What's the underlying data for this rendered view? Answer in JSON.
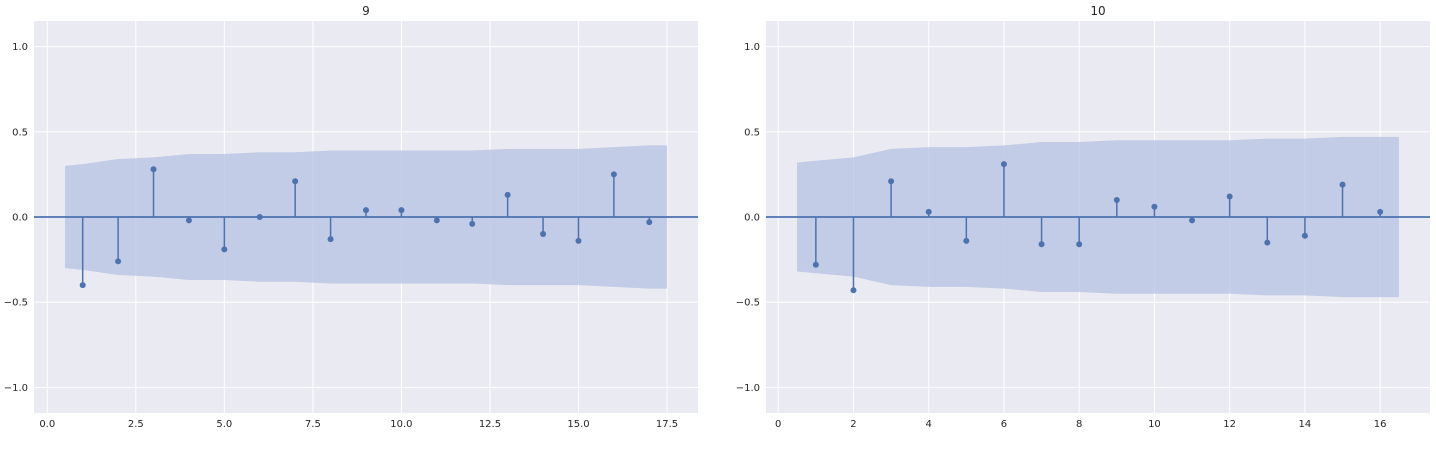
{
  "colors": {
    "series": "#4c72b0",
    "confidence_band": "#b4c1e1",
    "background": "#eaeaf2",
    "grid": "#ffffff"
  },
  "chart_data": [
    {
      "type": "stem",
      "title": "9",
      "xlim": [
        -0.375,
        18.375
      ],
      "ylim": [
        -1.15,
        1.15
      ],
      "xticks": [
        0.0,
        2.5,
        5.0,
        7.5,
        10.0,
        12.5,
        15.0,
        17.5
      ],
      "xtick_labels": [
        "0.0",
        "2.5",
        "5.0",
        "7.5",
        "10.0",
        "12.5",
        "15.0",
        "17.5"
      ],
      "yticks": [
        -1.0,
        -0.5,
        0.0,
        0.5,
        1.0
      ],
      "ytick_labels": [
        "−1.0",
        "−0.5",
        "0.0",
        "0.5",
        "1.0"
      ],
      "grid": true,
      "lags": [
        1,
        2,
        3,
        4,
        5,
        6,
        7,
        8,
        9,
        10,
        11,
        12,
        13,
        14,
        15,
        16,
        17
      ],
      "values": [
        -0.4,
        -0.26,
        0.28,
        -0.02,
        -0.19,
        0.0,
        0.21,
        -0.13,
        0.04,
        0.04,
        -0.02,
        -0.04,
        0.13,
        -0.1,
        -0.14,
        0.25,
        -0.03
      ],
      "confint": {
        "x": [
          0.5,
          1,
          2,
          3,
          4,
          5,
          6,
          7,
          8,
          9,
          10,
          11,
          12,
          13,
          14,
          15,
          16,
          17,
          17.5
        ],
        "upper": [
          0.3,
          0.31,
          0.34,
          0.35,
          0.37,
          0.37,
          0.38,
          0.38,
          0.39,
          0.39,
          0.39,
          0.39,
          0.39,
          0.4,
          0.4,
          0.4,
          0.41,
          0.42,
          0.42
        ]
      }
    },
    {
      "type": "stem",
      "title": "10",
      "xlim": [
        -0.325,
        17.325
      ],
      "ylim": [
        -1.15,
        1.15
      ],
      "xticks": [
        0,
        2,
        4,
        6,
        8,
        10,
        12,
        14,
        16
      ],
      "xtick_labels": [
        "0",
        "2",
        "4",
        "6",
        "8",
        "10",
        "12",
        "14",
        "16"
      ],
      "yticks": [
        -1.0,
        -0.5,
        0.0,
        0.5,
        1.0
      ],
      "ytick_labels": [
        "−1.0",
        "−0.5",
        "0.0",
        "0.5",
        "1.0"
      ],
      "grid": true,
      "lags": [
        1,
        2,
        3,
        4,
        5,
        6,
        7,
        8,
        9,
        10,
        11,
        12,
        13,
        14,
        15,
        16
      ],
      "values": [
        -0.28,
        -0.43,
        0.21,
        0.03,
        -0.14,
        0.31,
        -0.16,
        -0.16,
        0.1,
        0.06,
        -0.02,
        0.12,
        -0.15,
        -0.11,
        0.19,
        0.03
      ],
      "confint": {
        "x": [
          0.5,
          1,
          2,
          3,
          4,
          5,
          6,
          7,
          8,
          9,
          10,
          11,
          12,
          13,
          14,
          15,
          16,
          16.5
        ],
        "upper": [
          0.32,
          0.33,
          0.35,
          0.4,
          0.41,
          0.41,
          0.42,
          0.44,
          0.44,
          0.45,
          0.45,
          0.45,
          0.45,
          0.46,
          0.46,
          0.47,
          0.47,
          0.47
        ]
      }
    }
  ]
}
